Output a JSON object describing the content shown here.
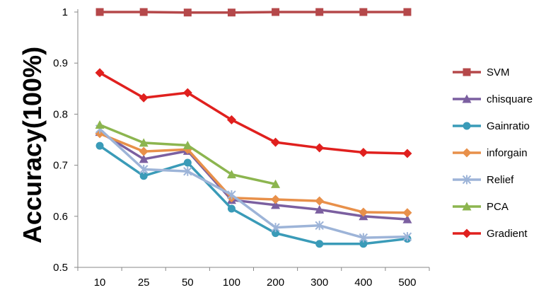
{
  "chart_data": {
    "type": "line",
    "title": "",
    "xlabel": "",
    "ylabel": "Accuracy(100%)",
    "categories": [
      "10",
      "25",
      "50",
      "100",
      "200",
      "300",
      "400",
      "500"
    ],
    "ylim": [
      0.5,
      1.0
    ],
    "yticks": [
      "0.5",
      "0.6",
      "0.7",
      "0.8",
      "0.9",
      "1"
    ],
    "yticks_values": [
      0.5,
      0.6,
      0.7,
      0.8,
      0.9,
      1.0
    ],
    "grid": false,
    "legend_position": "right",
    "series": [
      {
        "name": "SVM",
        "color": "#b5484a",
        "marker": "square",
        "values": [
          1.0,
          1.0,
          0.999,
          0.999,
          1.0,
          1.0,
          1.0,
          1.0
        ]
      },
      {
        "name": "chisquare",
        "color": "#7b5fa0",
        "marker": "triangle",
        "values": [
          0.765,
          0.712,
          0.728,
          0.632,
          0.622,
          0.613,
          0.6,
          0.594
        ]
      },
      {
        "name": "Gainratio",
        "color": "#3a9bb8",
        "marker": "circle",
        "values": [
          0.738,
          0.679,
          0.705,
          0.615,
          0.567,
          0.546,
          0.546,
          0.556
        ]
      },
      {
        "name": "inforgain",
        "color": "#e8904a",
        "marker": "diamond",
        "values": [
          0.762,
          0.727,
          0.731,
          0.636,
          0.633,
          0.63,
          0.608,
          0.607
        ]
      },
      {
        "name": "Relief",
        "color": "#9db4d8",
        "marker": "star",
        "values": [
          0.771,
          0.692,
          0.688,
          0.642,
          0.578,
          0.582,
          0.558,
          0.56
        ]
      },
      {
        "name": "PCA",
        "color": "#8cb54f",
        "marker": "triangle",
        "values": [
          0.779,
          0.744,
          0.739,
          0.682,
          0.663,
          null,
          null,
          null
        ]
      },
      {
        "name": "Gradient",
        "color": "#e0201e",
        "marker": "diamond",
        "values": [
          0.881,
          0.832,
          0.842,
          0.789,
          0.745,
          0.734,
          0.725,
          0.723
        ]
      }
    ]
  }
}
